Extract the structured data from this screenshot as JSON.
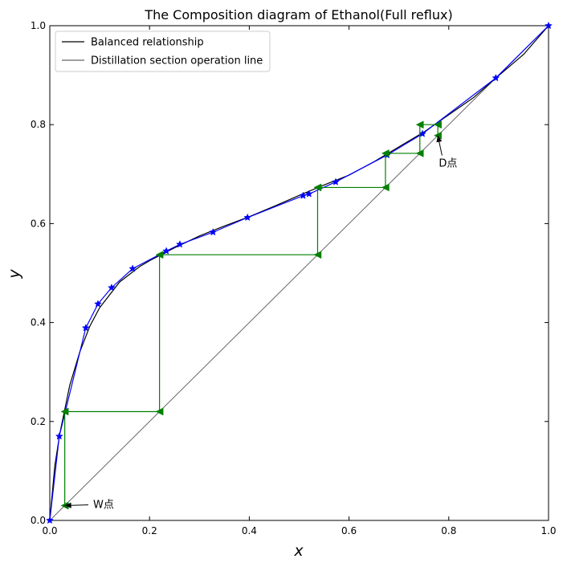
{
  "chart_data": {
    "type": "line",
    "title": "The Composition diagram of Ethanol(Full reflux)",
    "xlabel": "x",
    "ylabel": "y",
    "xlim": [
      0,
      1.0
    ],
    "ylim": [
      0,
      1.0
    ],
    "xticks": [
      "0.0",
      "0.2",
      "0.4",
      "0.6",
      "0.8",
      "1.0"
    ],
    "yticks": [
      "0.0",
      "0.2",
      "0.4",
      "0.6",
      "0.8",
      "1.0"
    ],
    "grid": false,
    "legend_position": "upper-left",
    "series": [
      {
        "name": "Balanced relationship",
        "color": "#000000",
        "x": [
          0,
          0.01,
          0.02,
          0.04,
          0.06,
          0.08,
          0.1,
          0.14,
          0.18,
          0.2,
          0.25,
          0.3,
          0.35,
          0.4,
          0.45,
          0.5,
          0.55,
          0.6,
          0.65,
          0.7,
          0.75,
          0.8,
          0.85,
          0.894,
          0.95,
          1.0
        ],
        "y": [
          0,
          0.11,
          0.175,
          0.273,
          0.34,
          0.392,
          0.43,
          0.482,
          0.513,
          0.525,
          0.551,
          0.575,
          0.595,
          0.614,
          0.635,
          0.657,
          0.678,
          0.698,
          0.725,
          0.755,
          0.785,
          0.82,
          0.855,
          0.894,
          0.942,
          1.0
        ]
      },
      {
        "name": "Distillation section operation line",
        "color": "#666666",
        "x": [
          0,
          1.0
        ],
        "y": [
          0,
          1.0
        ]
      },
      {
        "color": "#0000ff",
        "x": [
          0,
          0.019,
          0.0721,
          0.0966,
          0.1238,
          0.1661,
          0.2337,
          0.2608,
          0.3273,
          0.3965,
          0.5079,
          0.5198,
          0.5732,
          0.6763,
          0.7472,
          0.8943,
          1.0
        ],
        "y": [
          0,
          0.17,
          0.3891,
          0.4375,
          0.4704,
          0.5089,
          0.5445,
          0.558,
          0.5826,
          0.6122,
          0.6564,
          0.6599,
          0.6841,
          0.7385,
          0.7815,
          0.8943,
          1.0
        ]
      },
      {
        "color": "#008000",
        "steps_x": [
          0.778,
          0.778,
          0.742,
          0.742,
          0.673,
          0.673,
          0.537,
          0.537,
          0.22,
          0.22,
          0.03,
          0.03
        ],
        "steps_y": [
          0.778,
          0.8,
          0.8,
          0.742,
          0.742,
          0.673,
          0.673,
          0.537,
          0.537,
          0.22,
          0.22,
          0.03
        ]
      }
    ],
    "annotations": [
      {
        "text": "D点",
        "point": [
          0.778,
          0.778
        ],
        "text_at": [
          0.78,
          0.715
        ]
      },
      {
        "text": "W点",
        "point": [
          0.03,
          0.03
        ],
        "text_at": [
          0.087,
          0.025
        ]
      }
    ]
  }
}
